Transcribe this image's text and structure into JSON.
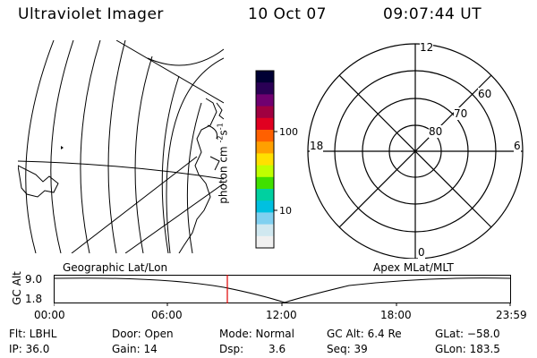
{
  "header": {
    "title": "Ultraviolet Imager",
    "date": "10 Oct 07",
    "time": "09:07:44 UT"
  },
  "colorbar": {
    "unit_label": "photon cm",
    "unit_sup1": "-2",
    "unit_mid": "s",
    "unit_sup2": "-1",
    "tick_high": "100",
    "tick_low": "10",
    "colors": [
      "#000033",
      "#2a0055",
      "#700070",
      "#a00040",
      "#e00020",
      "#ff6000",
      "#ffa000",
      "#ffe000",
      "#c0ff00",
      "#40e000",
      "#00d0a0",
      "#00c0e0",
      "#80d0f0",
      "#d0e8f0",
      "#f0f0f0"
    ]
  },
  "polar": {
    "mlt_top": "12",
    "mlt_bottom": "0",
    "mlt_left": "18",
    "mlt_right": "6",
    "lat_60": "60",
    "lat_70": "70",
    "lat_80": "80"
  },
  "timeline": {
    "left_title": "Geographic Lat/Lon",
    "right_title": "Apex MLat/MLT",
    "axis_label": "GC Alt",
    "y_top": "9.0",
    "y_bottom": "1.8",
    "x_ticks": [
      "00:00",
      "06:00",
      "12:00",
      "18:00",
      "23:59"
    ],
    "marker_color": "#e00000"
  },
  "footer": {
    "flt": "Flt: LBHL",
    "ip": "IP: 36.0",
    "door": "Door: Open",
    "gain": "Gain: 14",
    "mode": "Mode: Normal",
    "dsp_label": "Dsp:",
    "dsp_value": "3.6",
    "gc_alt": "GC Alt: 6.4 Re",
    "seq": "Seq: 39",
    "glat": "GLat: −58.0",
    "glon": "GLon: 183.5"
  }
}
